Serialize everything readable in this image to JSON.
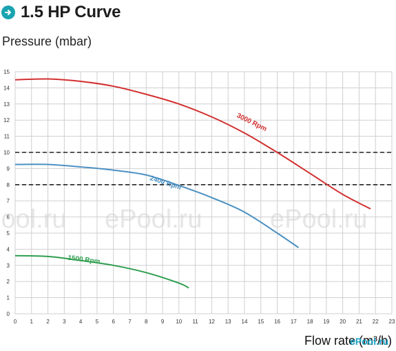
{
  "header": {
    "title": "1.5 HP Curve",
    "icon": "arrow-right-circle-icon",
    "icon_color": "#1aa3b0"
  },
  "watermark": {
    "text": "ePool.ru"
  },
  "logo": {
    "text": "ePool.ru"
  },
  "chart_data": {
    "type": "line",
    "title": "1.5 HP Curve",
    "ylabel": "Pressure (mbar)",
    "xlabel": "Flow rate (m³/h)",
    "xlim": [
      0,
      23
    ],
    "ylim": [
      0,
      15
    ],
    "x_ticks": [
      0,
      1,
      2,
      3,
      4,
      5,
      6,
      7,
      8,
      9,
      10,
      11,
      12,
      13,
      14,
      15,
      16,
      17,
      18,
      19,
      20,
      21,
      22,
      23
    ],
    "y_ticks": [
      0,
      1,
      2,
      3,
      4,
      5,
      6,
      7,
      8,
      9,
      10,
      11,
      12,
      13,
      14,
      15
    ],
    "grid": true,
    "reference_lines": [
      {
        "y": 10,
        "style": "dashed"
      },
      {
        "y": 8,
        "style": "dashed"
      }
    ],
    "series": [
      {
        "name": "3000 Rpm",
        "color": "#d32f2f",
        "x": [
          0,
          2,
          4,
          6,
          8,
          10,
          12,
          14,
          16,
          18,
          20,
          21.7
        ],
        "y": [
          14.5,
          14.55,
          14.4,
          14.1,
          13.6,
          13.0,
          12.2,
          11.2,
          10.0,
          8.7,
          7.4,
          6.5
        ],
        "label_at": [
          13.5,
          12.2
        ]
      },
      {
        "name": "2400 Rpm",
        "color": "#4a90c2",
        "x": [
          0,
          2,
          4,
          6,
          8,
          10,
          12,
          14,
          16,
          17.3
        ],
        "y": [
          9.25,
          9.25,
          9.1,
          8.9,
          8.6,
          7.95,
          7.2,
          6.3,
          5.0,
          4.1
        ],
        "label_at": [
          8.2,
          8.3
        ]
      },
      {
        "name": "1500 Rpm",
        "color": "#2e9e4f",
        "x": [
          0,
          2,
          4,
          6,
          8,
          10,
          10.6
        ],
        "y": [
          3.6,
          3.55,
          3.3,
          3.0,
          2.55,
          1.9,
          1.6
        ],
        "label_at": [
          3.2,
          3.35
        ]
      }
    ]
  }
}
